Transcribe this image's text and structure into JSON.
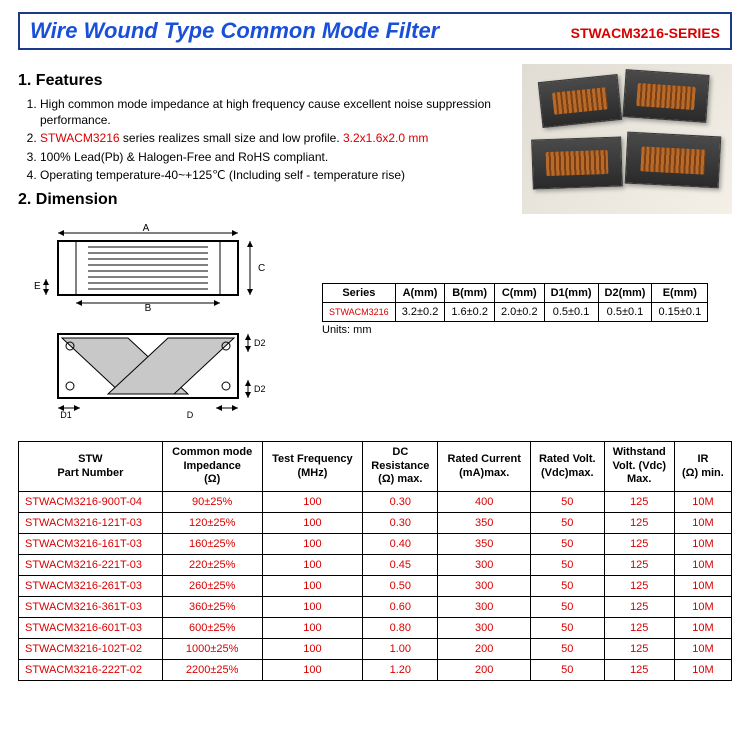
{
  "header": {
    "title": "Wire Wound Type Common Mode Filter",
    "series": "STWACM3216-SERIES"
  },
  "features": {
    "heading": "1. Features",
    "items": [
      {
        "pre": "High common mode impedance at high frequency cause excellent noise suppression performance.",
        "red1": "",
        "mid": "",
        "red2": ""
      },
      {
        "pre": "",
        "red1": "STWACM3216",
        "mid": " series realizes small size and low profile. ",
        "red2": "3.2x1.6x2.0 mm"
      },
      {
        "pre": "100% Lead(Pb) & Halogen-Free and RoHS compliant.",
        "red1": "",
        "mid": "",
        "red2": ""
      },
      {
        "pre": "Operating temperature-40~+125℃  (Including self - temperature rise)",
        "red1": "",
        "mid": "",
        "red2": ""
      }
    ]
  },
  "dimension": {
    "heading": "2. Dimension",
    "units_label": "Units: mm",
    "table": {
      "header": [
        "Series",
        "A(mm)",
        "B(mm)",
        "C(mm)",
        "D1(mm)",
        "D2(mm)",
        "E(mm)"
      ],
      "row_label": "STWACM3216",
      "row": [
        "3.2±0.2",
        "1.6±0.2",
        "2.0±0.2",
        "0.5±0.1",
        "0.5±0.1",
        "0.15±0.1"
      ]
    },
    "labels": {
      "A": "A",
      "B": "B",
      "C": "C",
      "D1": "D1",
      "D2": "D2",
      "E": "E"
    }
  },
  "spec_table": {
    "columns": [
      "STW\nPart Number",
      "Common mode\nImpedance\n(Ω)",
      "Test Frequency\n(MHz)",
      "DC\nResistance\n(Ω) max.",
      "Rated Current\n(mA)max.",
      "Rated Volt.\n(Vdc)max.",
      "Withstand\nVolt. (Vdc)\nMax.",
      "IR\n(Ω) min."
    ],
    "rows": [
      [
        "STWACM3216-900T-04",
        "90±25%",
        "100",
        "0.30",
        "400",
        "50",
        "125",
        "10M"
      ],
      [
        "STWACM3216-121T-03",
        "120±25%",
        "100",
        "0.30",
        "350",
        "50",
        "125",
        "10M"
      ],
      [
        "STWACM3216-161T-03",
        "160±25%",
        "100",
        "0.40",
        "350",
        "50",
        "125",
        "10M"
      ],
      [
        "STWACM3216-221T-03",
        "220±25%",
        "100",
        "0.45",
        "300",
        "50",
        "125",
        "10M"
      ],
      [
        "STWACM3216-261T-03",
        "260±25%",
        "100",
        "0.50",
        "300",
        "50",
        "125",
        "10M"
      ],
      [
        "STWACM3216-361T-03",
        "360±25%",
        "100",
        "0.60",
        "300",
        "50",
        "125",
        "10M"
      ],
      [
        "STWACM3216-601T-03",
        "600±25%",
        "100",
        "0.80",
        "300",
        "50",
        "125",
        "10M"
      ],
      [
        "STWACM3216-102T-02",
        "1000±25%",
        "100",
        "1.00",
        "200",
        "50",
        "125",
        "10M"
      ],
      [
        "STWACM3216-222T-02",
        "2200±25%",
        "100",
        "1.20",
        "200",
        "50",
        "125",
        "10M"
      ]
    ]
  },
  "colors": {
    "title_blue": "#1a50d8",
    "border_blue": "#1a3a8a",
    "red": "#d80000"
  }
}
